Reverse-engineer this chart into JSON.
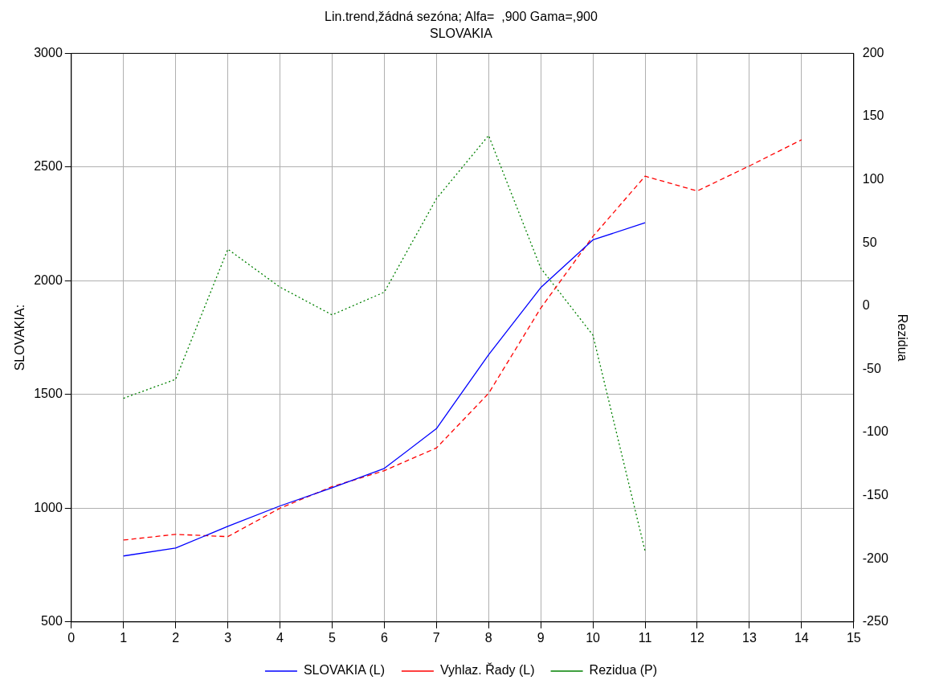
{
  "chart_data": {
    "type": "line",
    "title": "Lin.trend,žádná sezóna; Alfa=  ,900 Gama=,900",
    "subtitle": "SLOVAKIA",
    "ylabel": "SLOVAKIA:",
    "y2label": "Rezidua",
    "x": [
      1,
      2,
      3,
      4,
      5,
      6,
      7,
      8,
      9,
      10,
      11,
      12,
      13,
      14
    ],
    "series": [
      {
        "name": "SLOVAKIA (L)",
        "color": "#0000ff",
        "line_style": "solid",
        "values": [
          790,
          825,
          920,
          1010,
          1090,
          1175,
          1350,
          1675,
          1970,
          2180,
          2255,
          null,
          null,
          null
        ]
      },
      {
        "name": "Vyhlaz. Řady (L)",
        "color": "#ff0000",
        "line_style": "dashed",
        "values": [
          860,
          885,
          875,
          1000,
          1095,
          1165,
          1265,
          1505,
          1880,
          2195,
          2460,
          2395,
          2505,
          2620
        ]
      },
      {
        "name": "Rezidua (P)",
        "color": "#008000",
        "line_style": "dotted",
        "axis": "y2",
        "values": [
          -73,
          -58,
          45,
          15,
          -7,
          11,
          85,
          135,
          30,
          -23,
          -194,
          null,
          null,
          null
        ]
      }
    ],
    "xlim": [
      0,
      15
    ],
    "xticks": [
      0,
      1,
      2,
      3,
      4,
      5,
      6,
      7,
      8,
      9,
      10,
      11,
      12,
      13,
      14,
      15
    ],
    "ylim": [
      500,
      3000
    ],
    "yticks": [
      500,
      1000,
      1500,
      2000,
      2500,
      3000
    ],
    "y2lim": [
      -250,
      200
    ],
    "y2ticks": [
      -250,
      -200,
      -150,
      -100,
      -50,
      0,
      50,
      100,
      150,
      200
    ],
    "grid": true,
    "legend": "bottom"
  }
}
